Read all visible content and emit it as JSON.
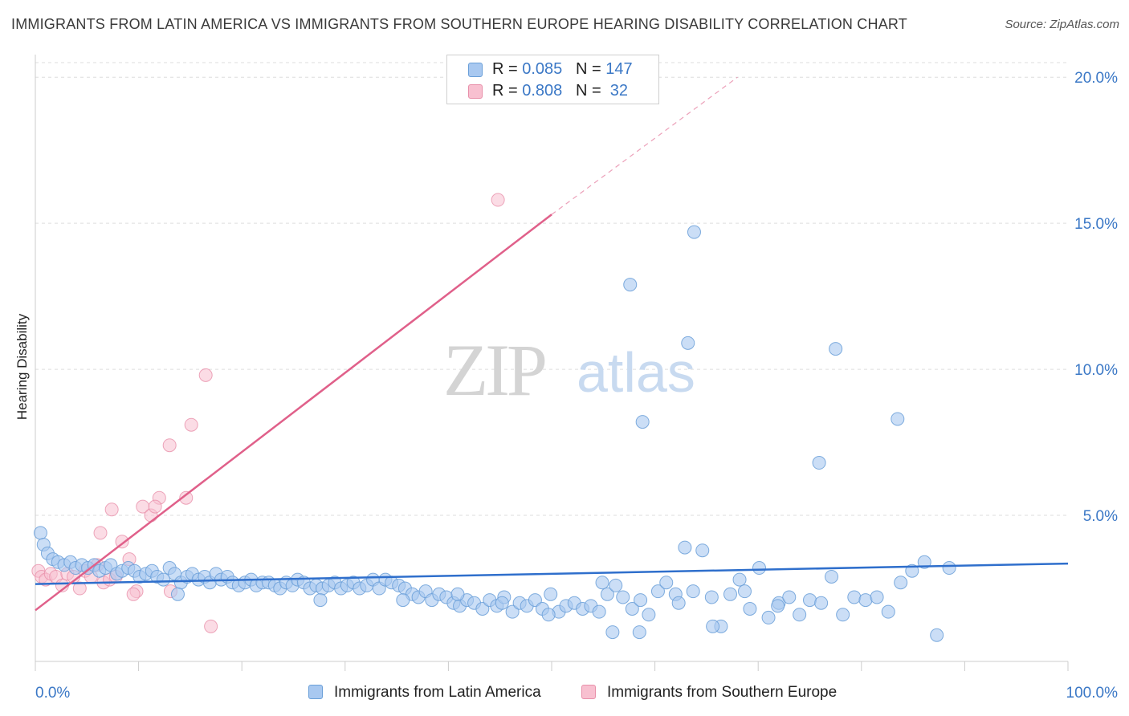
{
  "title": "IMMIGRANTS FROM LATIN AMERICA VS IMMIGRANTS FROM SOUTHERN EUROPE HEARING DISABILITY CORRELATION CHART",
  "source": "Source: ZipAtlas.com",
  "watermark": {
    "zip": "ZIP",
    "atlas": "atlas"
  },
  "colors": {
    "blue_fill": "#a8c8f0",
    "blue_stroke": "#6a9fd8",
    "blue_line": "#2f6fcc",
    "pink_fill": "#f8c0d0",
    "pink_stroke": "#e890aa",
    "pink_line": "#e0608a",
    "tick_text": "#3b78c6"
  },
  "legend": [
    {
      "r_label": "R = ",
      "r_value": "0.085",
      "n_label": "N = ",
      "n_value": "147"
    },
    {
      "r_label": "R = ",
      "r_value": "0.808",
      "n_label": "N = ",
      "n_value": " 32"
    }
  ],
  "chart_data": {
    "type": "scatter",
    "title": "IMMIGRANTS FROM LATIN AMERICA VS IMMIGRANTS FROM SOUTHERN EUROPE HEARING DISABILITY CORRELATION CHART",
    "xlabel": "",
    "ylabel": "Hearing Disability",
    "xlim": [
      0,
      100
    ],
    "ylim": [
      0,
      20.5
    ],
    "x_tick_labels": [
      "0.0%",
      "100.0%"
    ],
    "y_ticks": [
      5,
      10,
      15,
      20
    ],
    "y_tick_labels": [
      "5.0%",
      "10.0%",
      "15.0%",
      "20.0%"
    ],
    "series": [
      {
        "name": "Immigrants from Latin America",
        "R": 0.085,
        "N": 147,
        "trend": {
          "x0": 0,
          "y0": 2.65,
          "x1": 100,
          "y1": 3.35
        },
        "points": [
          [
            0.5,
            4.4
          ],
          [
            0.8,
            4.0
          ],
          [
            1.2,
            3.7
          ],
          [
            1.7,
            3.5
          ],
          [
            2.2,
            3.4
          ],
          [
            2.8,
            3.3
          ],
          [
            3.4,
            3.4
          ],
          [
            3.9,
            3.2
          ],
          [
            4.5,
            3.3
          ],
          [
            5.1,
            3.2
          ],
          [
            5.7,
            3.3
          ],
          [
            6.2,
            3.1
          ],
          [
            6.8,
            3.2
          ],
          [
            7.3,
            3.3
          ],
          [
            7.9,
            3.0
          ],
          [
            8.4,
            3.1
          ],
          [
            9.0,
            3.2
          ],
          [
            9.6,
            3.1
          ],
          [
            10.1,
            2.9
          ],
          [
            10.7,
            3.0
          ],
          [
            11.3,
            3.1
          ],
          [
            11.8,
            2.9
          ],
          [
            12.4,
            2.8
          ],
          [
            13.0,
            3.2
          ],
          [
            13.5,
            3.0
          ],
          [
            14.1,
            2.7
          ],
          [
            14.7,
            2.9
          ],
          [
            15.2,
            3.0
          ],
          [
            15.8,
            2.8
          ],
          [
            16.4,
            2.9
          ],
          [
            16.9,
            2.7
          ],
          [
            17.5,
            3.0
          ],
          [
            18.0,
            2.8
          ],
          [
            18.6,
            2.9
          ],
          [
            19.1,
            2.7
          ],
          [
            19.7,
            2.6
          ],
          [
            20.3,
            2.7
          ],
          [
            20.9,
            2.8
          ],
          [
            21.4,
            2.6
          ],
          [
            22.0,
            2.7
          ],
          [
            22.6,
            2.7
          ],
          [
            23.2,
            2.6
          ],
          [
            23.7,
            2.5
          ],
          [
            24.3,
            2.7
          ],
          [
            24.9,
            2.6
          ],
          [
            25.4,
            2.8
          ],
          [
            26.0,
            2.7
          ],
          [
            26.6,
            2.5
          ],
          [
            27.2,
            2.6
          ],
          [
            27.8,
            2.5
          ],
          [
            28.4,
            2.6
          ],
          [
            29.0,
            2.7
          ],
          [
            29.6,
            2.5
          ],
          [
            30.2,
            2.6
          ],
          [
            30.8,
            2.7
          ],
          [
            31.4,
            2.5
          ],
          [
            32.1,
            2.6
          ],
          [
            32.7,
            2.8
          ],
          [
            33.3,
            2.5
          ],
          [
            33.9,
            2.8
          ],
          [
            34.5,
            2.7
          ],
          [
            35.2,
            2.6
          ],
          [
            35.8,
            2.5
          ],
          [
            36.5,
            2.3
          ],
          [
            37.1,
            2.2
          ],
          [
            37.8,
            2.4
          ],
          [
            38.4,
            2.1
          ],
          [
            39.1,
            2.3
          ],
          [
            39.8,
            2.2
          ],
          [
            40.5,
            2.0
          ],
          [
            41.1,
            1.9
          ],
          [
            41.8,
            2.1
          ],
          [
            42.5,
            2.0
          ],
          [
            43.3,
            1.8
          ],
          [
            44.0,
            2.1
          ],
          [
            44.7,
            1.9
          ],
          [
            45.4,
            2.2
          ],
          [
            46.2,
            1.7
          ],
          [
            46.9,
            2.0
          ],
          [
            47.6,
            1.9
          ],
          [
            48.4,
            2.1
          ],
          [
            49.1,
            1.8
          ],
          [
            49.9,
            2.3
          ],
          [
            50.7,
            1.7
          ],
          [
            51.4,
            1.9
          ],
          [
            52.2,
            2.0
          ],
          [
            53.0,
            1.8
          ],
          [
            53.8,
            1.9
          ],
          [
            54.6,
            1.7
          ],
          [
            55.4,
            2.3
          ],
          [
            56.2,
            2.6
          ],
          [
            56.9,
            2.2
          ],
          [
            57.8,
            1.8
          ],
          [
            58.6,
            2.1
          ],
          [
            59.4,
            1.6
          ],
          [
            60.3,
            2.4
          ],
          [
            61.1,
            2.7
          ],
          [
            62.0,
            2.3
          ],
          [
            62.9,
            3.9
          ],
          [
            63.7,
            2.4
          ],
          [
            64.6,
            3.8
          ],
          [
            65.5,
            2.2
          ],
          [
            66.4,
            1.2
          ],
          [
            67.3,
            2.3
          ],
          [
            68.2,
            2.8
          ],
          [
            69.2,
            1.8
          ],
          [
            70.1,
            3.2
          ],
          [
            71.0,
            1.5
          ],
          [
            72.0,
            2.0
          ],
          [
            73.0,
            2.2
          ],
          [
            74.0,
            1.6
          ],
          [
            75.0,
            2.1
          ],
          [
            76.1,
            2.0
          ],
          [
            77.1,
            2.9
          ],
          [
            78.2,
            1.6
          ],
          [
            79.3,
            2.2
          ],
          [
            80.4,
            2.1
          ],
          [
            81.5,
            2.2
          ],
          [
            82.6,
            1.7
          ],
          [
            83.8,
            2.7
          ],
          [
            84.9,
            3.1
          ],
          [
            86.1,
            3.4
          ],
          [
            87.3,
            0.9
          ],
          [
            88.5,
            3.2
          ],
          [
            57.6,
            12.9
          ],
          [
            63.8,
            14.7
          ],
          [
            58.8,
            8.2
          ],
          [
            63.2,
            10.9
          ],
          [
            77.5,
            10.7
          ],
          [
            83.5,
            8.3
          ],
          [
            75.9,
            6.8
          ],
          [
            55.9,
            1.0
          ],
          [
            58.5,
            1.0
          ],
          [
            65.6,
            1.2
          ],
          [
            62.3,
            2.0
          ],
          [
            40.9,
            2.3
          ],
          [
            45.2,
            2.0
          ],
          [
            54.9,
            2.7
          ],
          [
            68.7,
            2.4
          ],
          [
            71.9,
            1.9
          ],
          [
            49.7,
            1.6
          ],
          [
            13.8,
            2.3
          ],
          [
            27.6,
            2.1
          ],
          [
            35.6,
            2.1
          ]
        ]
      },
      {
        "name": "Immigrants from Southern Europe",
        "R": 0.808,
        "N": 32,
        "trend": {
          "x0": 0,
          "y0": 1.75,
          "x1": 50,
          "y1": 15.3,
          "dashed_to_x": 68,
          "dashed_to_y": 20.0
        },
        "points": [
          [
            0.3,
            3.1
          ],
          [
            0.6,
            2.9
          ],
          [
            1.0,
            2.8
          ],
          [
            1.5,
            3.0
          ],
          [
            2.0,
            2.9
          ],
          [
            2.6,
            2.6
          ],
          [
            3.1,
            3.0
          ],
          [
            3.7,
            2.9
          ],
          [
            4.3,
            2.5
          ],
          [
            4.8,
            3.1
          ],
          [
            5.4,
            2.9
          ],
          [
            6.0,
            3.3
          ],
          [
            6.6,
            2.7
          ],
          [
            7.2,
            2.8
          ],
          [
            7.8,
            2.9
          ],
          [
            8.4,
            4.1
          ],
          [
            9.1,
            3.5
          ],
          [
            9.8,
            2.4
          ],
          [
            10.4,
            5.3
          ],
          [
            11.2,
            5.0
          ],
          [
            12.0,
            5.6
          ],
          [
            13.0,
            7.4
          ],
          [
            15.1,
            8.1
          ],
          [
            16.5,
            9.8
          ],
          [
            17.0,
            1.2
          ],
          [
            14.6,
            5.6
          ],
          [
            11.6,
            5.3
          ],
          [
            7.4,
            5.2
          ],
          [
            6.3,
            4.4
          ],
          [
            9.5,
            2.3
          ],
          [
            13.1,
            2.4
          ],
          [
            44.8,
            15.8
          ]
        ]
      }
    ]
  },
  "bottom_legend": [
    "Immigrants from Latin America",
    "Immigrants from Southern Europe"
  ]
}
